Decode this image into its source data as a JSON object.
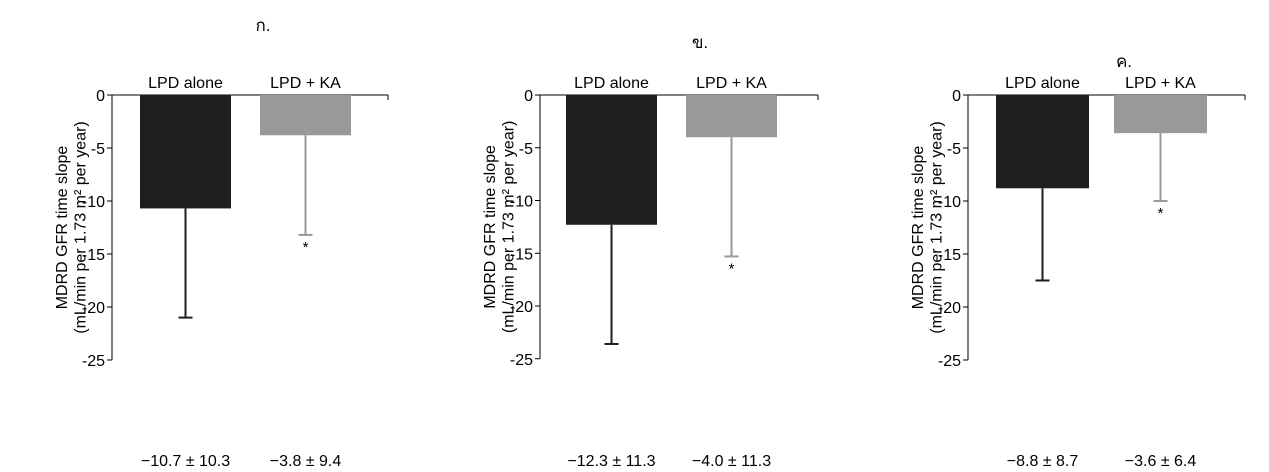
{
  "chart_data": [
    {
      "type": "bar",
      "title": "ก.",
      "ylabel_line1": "MDRD GFR time slope",
      "ylabel_line2": "(mL/min per 1.73 m² per year)",
      "ylim": [
        -25,
        0
      ],
      "yticks": [
        0,
        -5,
        -10,
        -15,
        -20,
        -25
      ],
      "categories": [
        "LPD alone",
        "LPD + KA"
      ],
      "values": [
        -10.7,
        -3.8
      ],
      "errors": [
        10.3,
        9.4
      ],
      "value_labels": [
        "−10.7 ± 10.3",
        "−3.8 ± 9.4"
      ],
      "significance": [
        "",
        "*"
      ],
      "colors": [
        "#1e1e1e",
        "#999999"
      ],
      "error_colors": [
        "#1e1e1e",
        "#999999"
      ]
    },
    {
      "type": "bar",
      "title": "ข.",
      "ylabel_line1": "MDRD GFR time slope",
      "ylabel_line2": "(mL/min per 1.73 m² per year)",
      "ylim": [
        -25,
        0
      ],
      "yticks": [
        0,
        -5,
        -10,
        -15,
        -20,
        -25
      ],
      "categories": [
        "LPD alone",
        "LPD + KA"
      ],
      "values": [
        -12.3,
        -4.0
      ],
      "errors": [
        11.3,
        11.3
      ],
      "value_labels": [
        "−12.3 ± 11.3",
        "−4.0 ± 11.3"
      ],
      "significance": [
        "",
        "*"
      ],
      "colors": [
        "#1e1e1e",
        "#999999"
      ],
      "error_colors": [
        "#1e1e1e",
        "#999999"
      ]
    },
    {
      "type": "bar",
      "title": "ค.",
      "ylabel_line1": "MDRD GFR time slope",
      "ylabel_line2": "(mL/min per 1.73 m² per year)",
      "ylim": [
        -25,
        0
      ],
      "yticks": [
        0,
        -5,
        -10,
        -15,
        -20,
        -25
      ],
      "categories": [
        "LPD alone",
        "LPD + KA"
      ],
      "values": [
        -8.8,
        -3.6
      ],
      "errors": [
        8.7,
        6.4
      ],
      "value_labels": [
        "−8.8 ± 8.7",
        "−3.6 ± 6.4"
      ],
      "significance": [
        "",
        "*"
      ],
      "colors": [
        "#1e1e1e",
        "#999999"
      ],
      "error_colors": [
        "#1e1e1e",
        "#999999"
      ]
    }
  ]
}
